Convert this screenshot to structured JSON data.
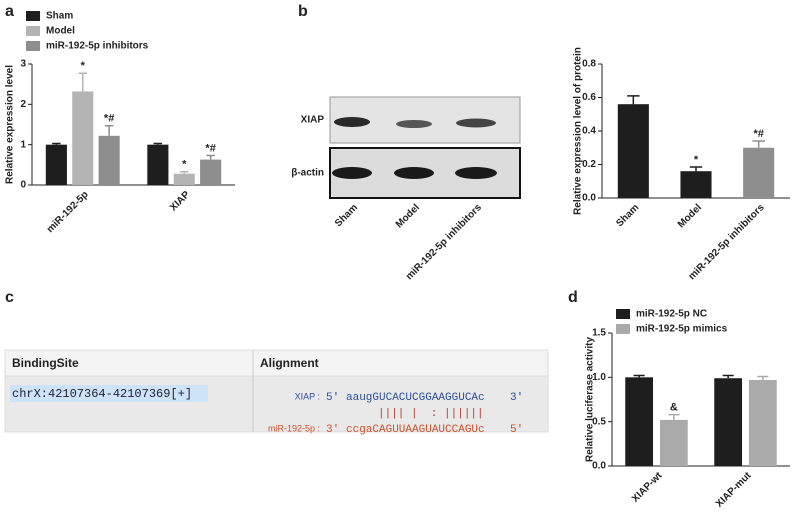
{
  "chart_data": [
    {
      "panel": "a",
      "type": "bar",
      "ylabel": "Relative expression level",
      "categories": [
        "miR-192-5p",
        "XIAP"
      ],
      "series": [
        {
          "name": "Sham",
          "color": "#1e1e1e",
          "values": [
            1.0,
            1.0
          ],
          "errors": [
            0.03,
            0.03
          ]
        },
        {
          "name": "Model",
          "color": "#b4b4b4",
          "values": [
            2.32,
            0.28
          ],
          "errors": [
            0.45,
            0.05
          ],
          "annotations": [
            "*",
            "*"
          ]
        },
        {
          "name": "miR-192-5p inhibitors",
          "color": "#8e8e8e",
          "values": [
            1.22,
            0.63
          ],
          "errors": [
            0.25,
            0.1
          ],
          "annotations": [
            "*#",
            "*#"
          ]
        }
      ],
      "ylim": [
        0,
        3
      ],
      "yticks": [
        0,
        1,
        2,
        3
      ],
      "legend": "top-left"
    },
    {
      "panel": "b",
      "type": "bar",
      "ylabel": "Relative expression level of protein",
      "categories": [
        "Sham",
        "Model",
        "miR-192-5p inhibitors"
      ],
      "values": [
        0.56,
        0.16,
        0.3
      ],
      "errors": [
        0.05,
        0.025,
        0.04
      ],
      "colors": [
        "#1e1e1e",
        "#1e1e1e",
        "#8e8e8e"
      ],
      "annotations": [
        null,
        "*",
        "*#"
      ],
      "ylim": [
        0,
        0.8
      ],
      "yticks": [
        {
          "value": 0,
          "label": "0.0"
        },
        0.2,
        0.4,
        0.6,
        0.8
      ]
    },
    {
      "panel": "d",
      "type": "bar",
      "ylabel": "Relative luciferase activity",
      "categories": [
        "XIAP-wt",
        "XIAP-mut"
      ],
      "series": [
        {
          "name": "miR-192-5p NC",
          "color": "#1e1e1e",
          "values": [
            1.0,
            0.99
          ],
          "errors": [
            0.02,
            0.03
          ]
        },
        {
          "name": "miR-192-5p mimics",
          "color": "#aaaaaa",
          "values": [
            0.52,
            0.97
          ],
          "errors": [
            0.06,
            0.04
          ],
          "annotations": [
            "&",
            null
          ]
        }
      ],
      "ylim": [
        0,
        1.5
      ],
      "yticks": [
        {
          "value": 0,
          "label": "0.0"
        },
        0.5,
        {
          "value": 1,
          "label": "1.0"
        },
        1.5
      ],
      "legend": "top-left"
    }
  ],
  "blot": {
    "rows": [
      "XIAP",
      "β-actin"
    ],
    "lanes": [
      "Sham",
      "Model",
      "miR-192-5p inhibitors"
    ]
  },
  "alignment": {
    "panel": "c",
    "headers": [
      "BindingSite",
      "Alignment"
    ],
    "site": "chrX:42107364-42107369[+]",
    "target": {
      "name": "XIAP :",
      "end5": "5'",
      "seq": "aaugGUCACUCGGAAGGUCAc",
      "end3": "3'"
    },
    "pairing": "|||| |  : ||||||",
    "mirna": {
      "name": "miR-192-5p :",
      "end3": "3'",
      "seq": "ccgaCAGUUAAGUAUCCAGUc",
      "end5": "5'"
    }
  }
}
